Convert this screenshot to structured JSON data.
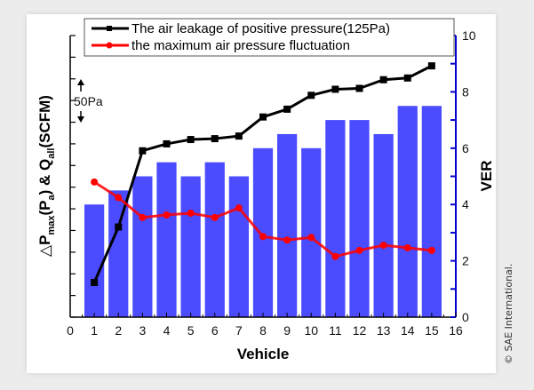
{
  "chart_data": {
    "type": "bar+line",
    "title": "",
    "xlabel": "Vehicle",
    "ylabel_left": "△P_max(P_a) & Q_all(SCFM)",
    "ylabel_right": "VER",
    "xlim": [
      0,
      16
    ],
    "x_ticks": [
      "0",
      "1",
      "2",
      "3",
      "4",
      "5",
      "6",
      "7",
      "8",
      "9",
      "10",
      "11",
      "12",
      "13",
      "14",
      "15",
      "16"
    ],
    "ylim_right": [
      0,
      10
    ],
    "y_ticks_right": [
      "0",
      "2",
      "4",
      "6",
      "8",
      "10"
    ],
    "ylim_left": [
      0,
      325
    ],
    "left_axis_note": "unlabeled ticks; bracket marks 50Pa span",
    "annotation": "50Pa",
    "categories": [
      1,
      2,
      3,
      4,
      5,
      6,
      7,
      8,
      9,
      10,
      11,
      12,
      13,
      14,
      15
    ],
    "bars": {
      "name": "VER",
      "axis": "right",
      "color": "#4b4bff",
      "values": [
        4,
        4.5,
        5,
        5.5,
        5,
        5.5,
        5,
        6,
        6.5,
        6,
        7,
        7,
        6.5,
        7.5,
        7.5
      ]
    },
    "series": [
      {
        "name": "The air leakage of positive pressure(125Pa)",
        "axis": "left",
        "color": "#000000",
        "marker": "square",
        "values": [
          40,
          104,
          192,
          200,
          205,
          206,
          209,
          231,
          240,
          256,
          263,
          264,
          274,
          276,
          290
        ]
      },
      {
        "name": "the maximum air pressure fluctuation",
        "axis": "left",
        "color": "#ff0000",
        "marker": "circle",
        "values": [
          156,
          138,
          115,
          118,
          120,
          115,
          126,
          93,
          89,
          92,
          70,
          77,
          83,
          80,
          77
        ]
      }
    ],
    "legend_position": "top-center",
    "grid": false,
    "right_axis_color": "#0000cc"
  },
  "copyright": "© SAE International."
}
